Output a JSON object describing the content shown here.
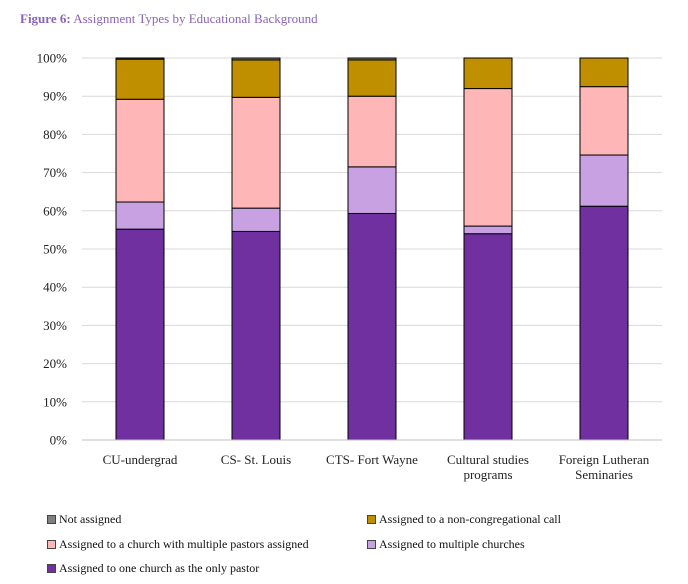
{
  "figure": {
    "label": "Figure 6:",
    "title": "Assignment Types by Educational Background"
  },
  "chart_data": {
    "type": "bar",
    "stacked": true,
    "title": "Assignment Types by Educational Background",
    "categories": [
      [
        "CU-undergrad"
      ],
      [
        "CS- St. Louis"
      ],
      [
        "CTS- Fort Wayne"
      ],
      [
        "Cultural studies",
        "programs"
      ],
      [
        "Foreign Lutheran",
        "Seminaries"
      ]
    ],
    "series": [
      {
        "name": "Assigned to one church as the only pastor",
        "color": "#7030a0",
        "values": [
          55.2,
          54.6,
          59.3,
          54.0,
          61.2
        ]
      },
      {
        "name": "Assigned to multiple churches",
        "color": "#c7a1e2",
        "values": [
          7.1,
          6.1,
          12.2,
          2.0,
          13.4
        ]
      },
      {
        "name": "Assigned to a church with multiple pastors assigned",
        "color": "#ffb6b6",
        "values": [
          26.9,
          29.0,
          18.5,
          36.0,
          17.9
        ]
      },
      {
        "name": "Assigned to a non-congregational call",
        "color": "#bf8f00",
        "values": [
          10.5,
          9.8,
          9.5,
          8.0,
          7.5
        ]
      },
      {
        "name": "Not assigned",
        "color": "#7f7f7f",
        "values": [
          0.3,
          0.5,
          0.5,
          0.0,
          0.0
        ]
      }
    ],
    "y_ticks": [
      "0%",
      "10%",
      "20%",
      "30%",
      "40%",
      "50%",
      "60%",
      "70%",
      "80%",
      "90%",
      "100%"
    ],
    "ylim": [
      0,
      100
    ],
    "grid": true,
    "legend_position": "bottom",
    "legend": [
      {
        "name": "Not assigned",
        "color": "#7f7f7f"
      },
      {
        "name": "Assigned to a non-congregational call",
        "color": "#bf8f00"
      },
      {
        "name": "Assigned to a church with multiple pastors assigned",
        "color": "#ffb6b6"
      },
      {
        "name": "Assigned to multiple churches",
        "color": "#c7a1e2"
      },
      {
        "name": "Assigned to one church as the only pastor",
        "color": "#7030a0"
      }
    ]
  }
}
